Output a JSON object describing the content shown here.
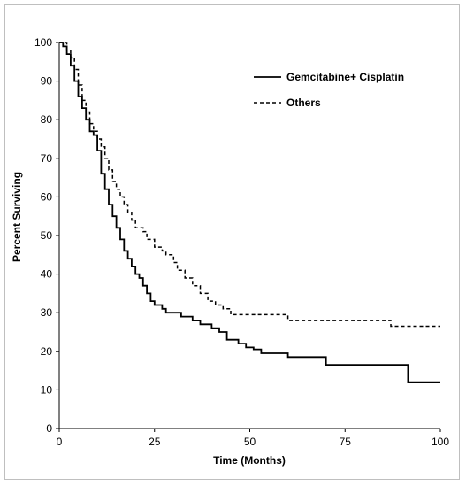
{
  "chart_data": {
    "type": "line",
    "title": "",
    "xlabel": "Time (Months)",
    "ylabel": "Percent Surviving",
    "xlim": [
      0,
      100
    ],
    "ylim": [
      0,
      100
    ],
    "x_ticks": [
      0,
      25,
      50,
      75,
      100
    ],
    "y_ticks": [
      0,
      10,
      20,
      30,
      40,
      50,
      60,
      70,
      80,
      90,
      100
    ],
    "grid": false,
    "legend_position": "top-right",
    "series": [
      {
        "name": "Gemcitabine+ Cisplatin",
        "style": "solid",
        "color": "#000000",
        "steps": [
          [
            0,
            100
          ],
          [
            1,
            99
          ],
          [
            2,
            97
          ],
          [
            3,
            94
          ],
          [
            4,
            90
          ],
          [
            5,
            86
          ],
          [
            6,
            83
          ],
          [
            7,
            80
          ],
          [
            8,
            77
          ],
          [
            9,
            76
          ],
          [
            10,
            72
          ],
          [
            11,
            66
          ],
          [
            12,
            62
          ],
          [
            13,
            58
          ],
          [
            14,
            55
          ],
          [
            15,
            52
          ],
          [
            16,
            49
          ],
          [
            17,
            46
          ],
          [
            18,
            44
          ],
          [
            19,
            42
          ],
          [
            20,
            40
          ],
          [
            21,
            39
          ],
          [
            22,
            37
          ],
          [
            23,
            35
          ],
          [
            24,
            33
          ],
          [
            25,
            32
          ],
          [
            27,
            31
          ],
          [
            28,
            30
          ],
          [
            32,
            29
          ],
          [
            35,
            28
          ],
          [
            37,
            27
          ],
          [
            40,
            26
          ],
          [
            42,
            25
          ],
          [
            44,
            23
          ],
          [
            47,
            22
          ],
          [
            49,
            21
          ],
          [
            51,
            20.5
          ],
          [
            53,
            19.5
          ],
          [
            60,
            18.5
          ],
          [
            70,
            16.5
          ],
          [
            80,
            16.5
          ],
          [
            91.5,
            12
          ],
          [
            100,
            12
          ]
        ]
      },
      {
        "name": "Others",
        "style": "dashed",
        "color": "#000000",
        "steps": [
          [
            0,
            100
          ],
          [
            2,
            98
          ],
          [
            3,
            96
          ],
          [
            4,
            93
          ],
          [
            5,
            89
          ],
          [
            6,
            85
          ],
          [
            7,
            82
          ],
          [
            8,
            79
          ],
          [
            9,
            77
          ],
          [
            10,
            75
          ],
          [
            11,
            73
          ],
          [
            12,
            70
          ],
          [
            13,
            67
          ],
          [
            14,
            64
          ],
          [
            15,
            62
          ],
          [
            16,
            60
          ],
          [
            17,
            58
          ],
          [
            18,
            56
          ],
          [
            19,
            54
          ],
          [
            20,
            52
          ],
          [
            22,
            51
          ],
          [
            23,
            49
          ],
          [
            25,
            47
          ],
          [
            27,
            46
          ],
          [
            28,
            45
          ],
          [
            30,
            43
          ],
          [
            31,
            41
          ],
          [
            33,
            39
          ],
          [
            35,
            37
          ],
          [
            37,
            35
          ],
          [
            39,
            33
          ],
          [
            41,
            32
          ],
          [
            43,
            31
          ],
          [
            45,
            29.5
          ],
          [
            60,
            28
          ],
          [
            75,
            28
          ],
          [
            87,
            26.5
          ],
          [
            100,
            26.5
          ]
        ]
      }
    ]
  }
}
